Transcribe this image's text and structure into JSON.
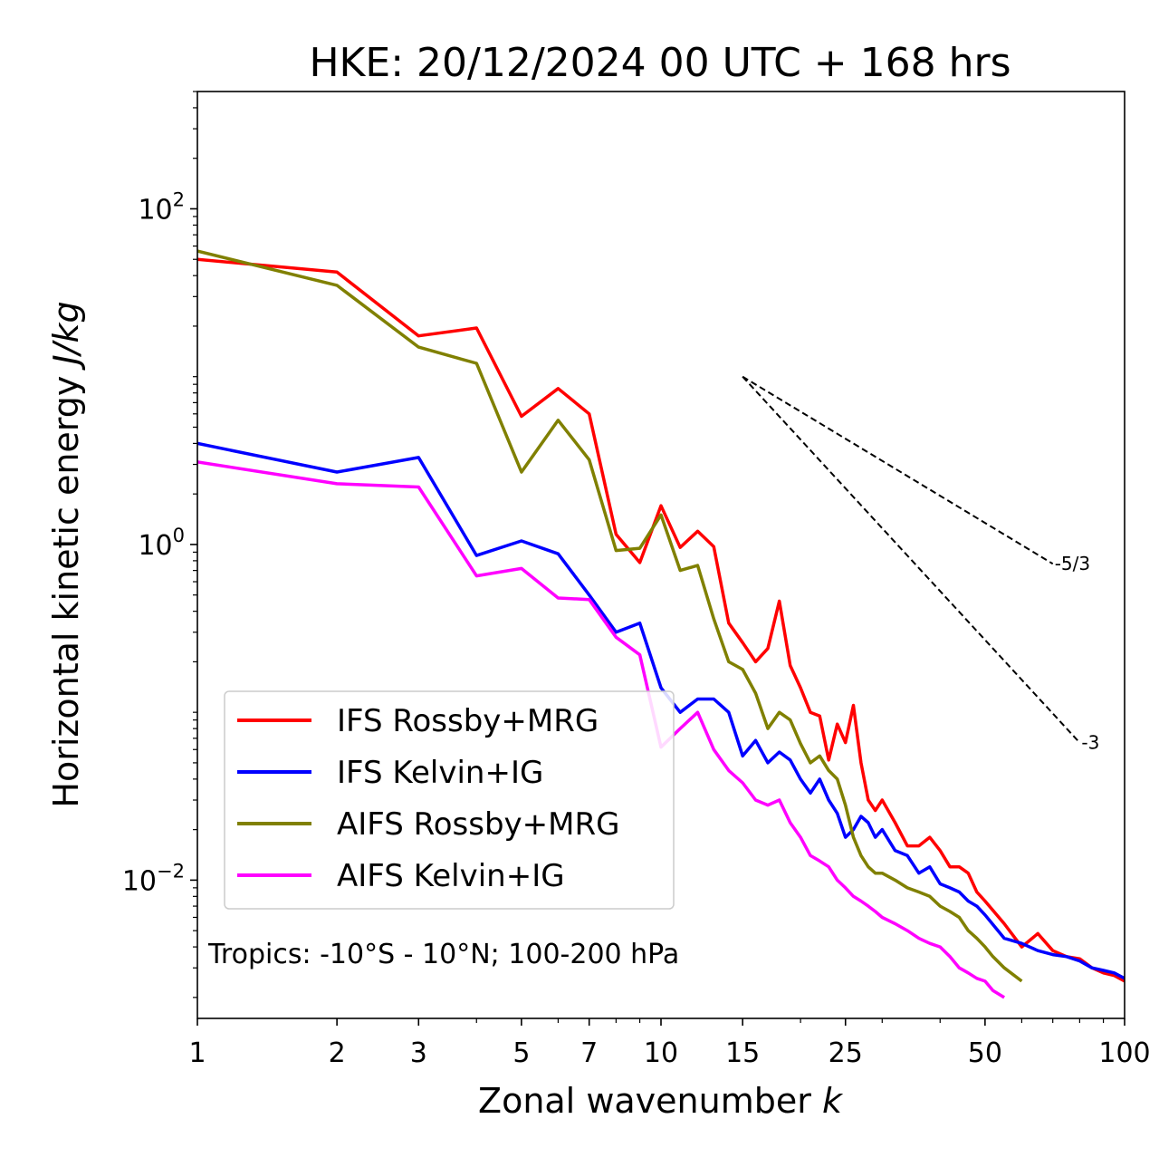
{
  "chart_data": {
    "type": "line",
    "title": "HKE: 20/12/2024 00 UTC + 168 hrs",
    "xlabel": "Zonal wavenumber",
    "xlabel_italic": "k",
    "ylabel": "Horizontal kinetic energy",
    "ylabel_italic": "J/kg",
    "xscale": "log",
    "yscale": "log",
    "xlim": [
      1,
      100
    ],
    "ylim": [
      0.0015,
      500
    ],
    "xticks": [
      {
        "value": 1,
        "label": "1"
      },
      {
        "value": 2,
        "label": "2"
      },
      {
        "value": 3,
        "label": "3"
      },
      {
        "value": 5,
        "label": "5"
      },
      {
        "value": 7,
        "label": "7"
      },
      {
        "value": 10,
        "label": "10"
      },
      {
        "value": 15,
        "label": "15"
      },
      {
        "value": 25,
        "label": "25"
      },
      {
        "value": 50,
        "label": "50"
      },
      {
        "value": 100,
        "label": "100"
      }
    ],
    "yticks": [
      {
        "value": 0.01,
        "base": "10",
        "exp": "−2"
      },
      {
        "value": 1,
        "base": "10",
        "exp": "0"
      },
      {
        "value": 100,
        "base": "10",
        "exp": "2"
      }
    ],
    "annotation": "Tropics: -10°S - 10°N; 100-200 hPa",
    "legend_position": "lower-left",
    "reference_slopes": [
      {
        "label": "-5/3",
        "slope": -1.6667,
        "x0": 15,
        "y0": 10.0,
        "x1": 70
      },
      {
        "label": "-3",
        "slope": -3,
        "x0": 15,
        "y0": 10.0,
        "x1": 80
      }
    ],
    "series": [
      {
        "name": "IFS Rossby+MRG",
        "color": "#ff0000",
        "x": [
          1,
          2,
          3,
          4,
          5,
          6,
          7,
          8,
          9,
          10,
          11,
          12,
          13,
          14,
          15,
          16,
          17,
          18,
          19,
          20,
          21,
          22,
          23,
          24,
          25,
          26,
          27,
          28,
          29,
          30,
          32,
          34,
          36,
          38,
          40,
          42,
          44,
          46,
          48,
          50,
          55,
          60,
          65,
          70,
          75,
          80,
          85,
          90,
          95,
          100
        ],
        "y": [
          50,
          42,
          17.5,
          19.5,
          5.8,
          8.5,
          6.0,
          1.15,
          0.78,
          1.7,
          0.96,
          1.2,
          0.97,
          0.34,
          0.26,
          0.2,
          0.24,
          0.46,
          0.19,
          0.14,
          0.1,
          0.095,
          0.052,
          0.085,
          0.066,
          0.11,
          0.05,
          0.03,
          0.026,
          0.03,
          0.022,
          0.016,
          0.016,
          0.018,
          0.015,
          0.012,
          0.012,
          0.011,
          0.0085,
          0.0075,
          0.0055,
          0.004,
          0.0048,
          0.0038,
          0.0035,
          0.0034,
          0.003,
          0.0028,
          0.0027,
          0.0025
        ]
      },
      {
        "name": "IFS Kelvin+IG",
        "color": "#0000ff",
        "x": [
          1,
          2,
          3,
          4,
          5,
          6,
          7,
          8,
          9,
          10,
          11,
          12,
          13,
          14,
          15,
          16,
          17,
          18,
          19,
          20,
          21,
          22,
          23,
          24,
          25,
          26,
          27,
          28,
          29,
          30,
          32,
          34,
          36,
          38,
          40,
          42,
          44,
          46,
          48,
          50,
          55,
          60,
          65,
          70,
          75,
          80,
          85,
          90,
          95,
          100
        ],
        "y": [
          4.0,
          2.7,
          3.3,
          0.86,
          1.05,
          0.88,
          0.5,
          0.3,
          0.34,
          0.14,
          0.1,
          0.12,
          0.12,
          0.1,
          0.055,
          0.068,
          0.05,
          0.058,
          0.052,
          0.04,
          0.033,
          0.04,
          0.03,
          0.025,
          0.018,
          0.02,
          0.024,
          0.022,
          0.018,
          0.02,
          0.015,
          0.014,
          0.011,
          0.012,
          0.0095,
          0.009,
          0.0085,
          0.0075,
          0.007,
          0.0062,
          0.0045,
          0.0042,
          0.0038,
          0.0036,
          0.0035,
          0.0033,
          0.003,
          0.0029,
          0.0028,
          0.0026
        ]
      },
      {
        "name": "AIFS Rossby+MRG",
        "color": "#808000",
        "x": [
          1,
          2,
          3,
          4,
          5,
          6,
          7,
          8,
          9,
          10,
          11,
          12,
          13,
          14,
          15,
          16,
          17,
          18,
          19,
          20,
          21,
          22,
          23,
          24,
          25,
          26,
          27,
          28,
          29,
          30,
          32,
          34,
          36,
          38,
          40,
          42,
          44,
          46,
          48,
          50,
          52,
          55,
          60
        ],
        "y": [
          56,
          35,
          15,
          12,
          2.7,
          5.5,
          3.2,
          0.92,
          0.95,
          1.5,
          0.7,
          0.75,
          0.36,
          0.2,
          0.18,
          0.13,
          0.08,
          0.1,
          0.09,
          0.065,
          0.05,
          0.055,
          0.045,
          0.04,
          0.028,
          0.018,
          0.014,
          0.012,
          0.011,
          0.011,
          0.01,
          0.009,
          0.0085,
          0.008,
          0.007,
          0.0065,
          0.006,
          0.005,
          0.0045,
          0.004,
          0.0035,
          0.003,
          0.0025
        ]
      },
      {
        "name": "AIFS Kelvin+IG",
        "color": "#ff00ff",
        "x": [
          1,
          2,
          3,
          4,
          5,
          6,
          7,
          8,
          9,
          10,
          11,
          12,
          13,
          14,
          15,
          16,
          17,
          18,
          19,
          20,
          21,
          22,
          23,
          24,
          25,
          26,
          27,
          28,
          29,
          30,
          32,
          34,
          36,
          38,
          40,
          42,
          44,
          46,
          48,
          50,
          52,
          55
        ],
        "y": [
          3.1,
          2.3,
          2.2,
          0.65,
          0.72,
          0.48,
          0.47,
          0.28,
          0.22,
          0.062,
          0.08,
          0.1,
          0.06,
          0.045,
          0.038,
          0.03,
          0.028,
          0.03,
          0.022,
          0.018,
          0.014,
          0.013,
          0.012,
          0.01,
          0.009,
          0.008,
          0.0075,
          0.007,
          0.0065,
          0.006,
          0.0055,
          0.005,
          0.0045,
          0.0042,
          0.004,
          0.0035,
          0.003,
          0.0028,
          0.0026,
          0.0025,
          0.0022,
          0.002
        ]
      }
    ]
  }
}
